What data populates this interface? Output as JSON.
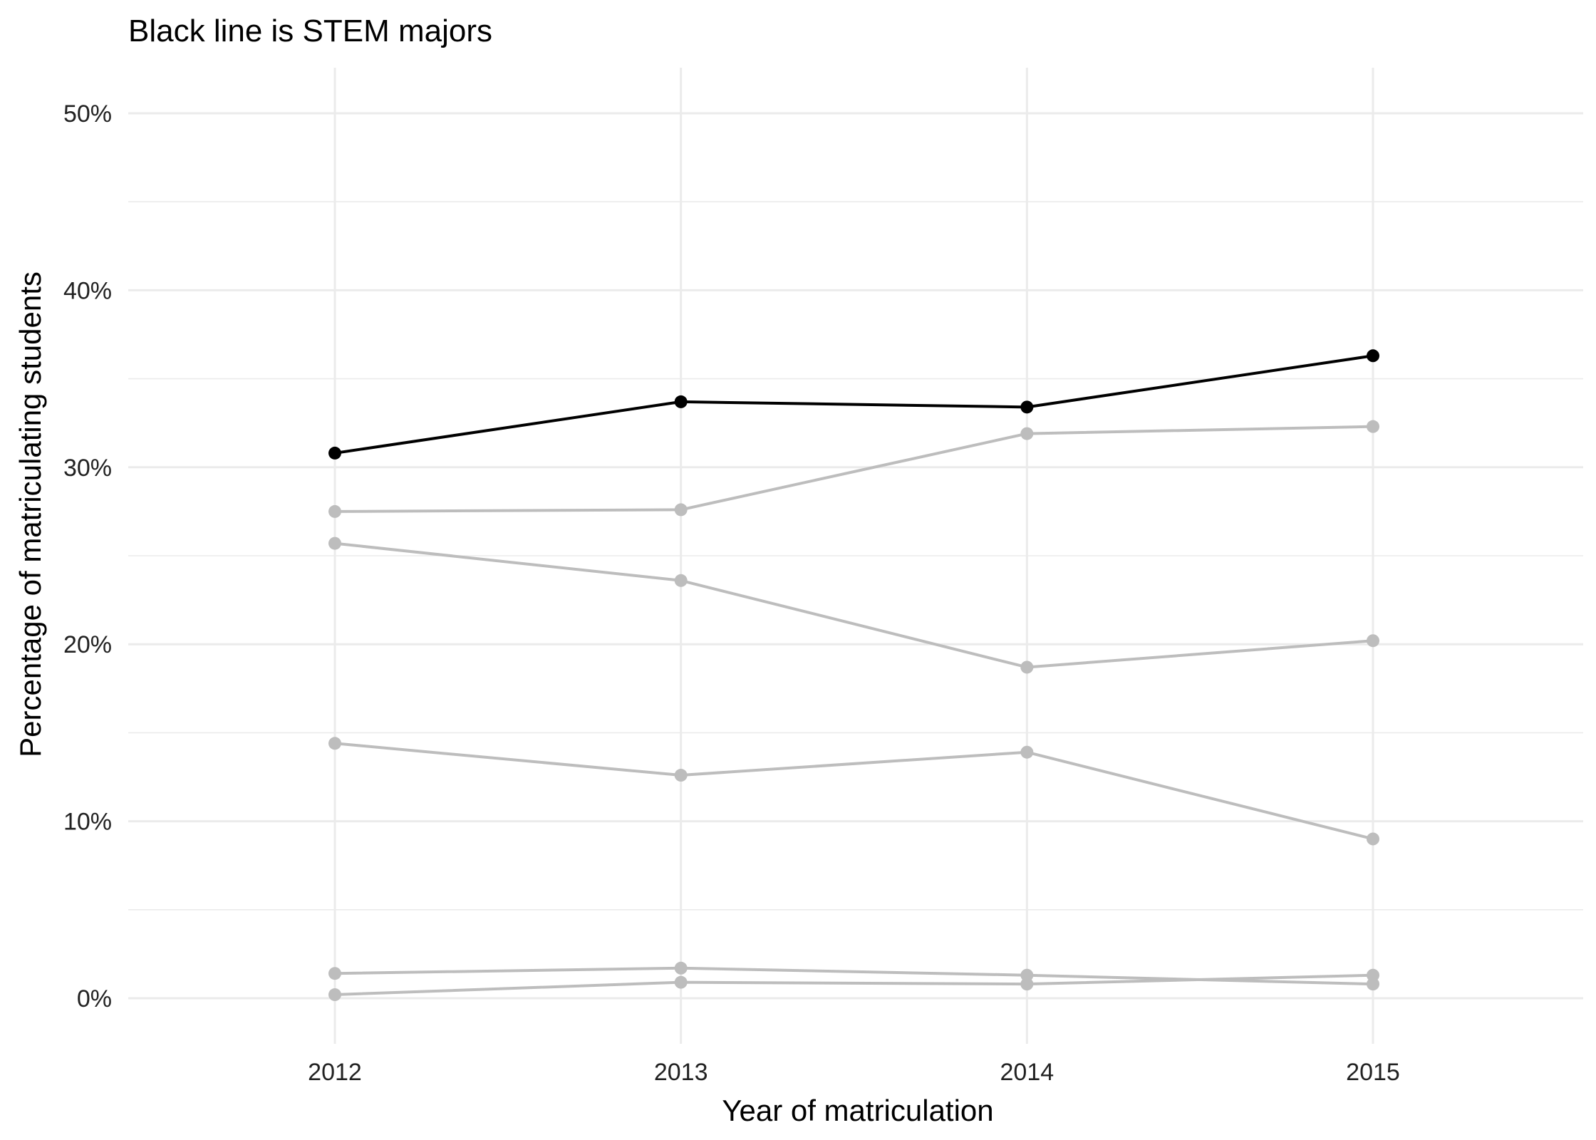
{
  "chart_data": {
    "type": "line",
    "title": "Black line is STEM majors",
    "xlabel": "Year of matriculation",
    "ylabel": "Percentage of matriculating students",
    "x": [
      2012,
      2013,
      2014,
      2015
    ],
    "x_tick_labels": [
      "2012",
      "2013",
      "2014",
      "2015"
    ],
    "ylim": [
      -2,
      52
    ],
    "y_ticks": [
      0,
      10,
      20,
      30,
      40,
      50
    ],
    "y_tick_labels": [
      "0%",
      "10%",
      "20%",
      "30%",
      "40%",
      "50%"
    ],
    "grid": true,
    "legend": "none",
    "colors": {
      "highlight": "#000000",
      "other": "#bdbdbd",
      "grid": "#ebebeb"
    },
    "series": [
      {
        "highlight": false,
        "values": [
          27.5,
          27.6,
          31.9,
          32.3
        ]
      },
      {
        "highlight": false,
        "values": [
          25.7,
          23.6,
          18.7,
          20.2
        ]
      },
      {
        "highlight": false,
        "values": [
          14.4,
          12.6,
          13.9,
          9.0
        ]
      },
      {
        "highlight": false,
        "values": [
          1.4,
          1.7,
          1.3,
          0.8
        ]
      },
      {
        "highlight": false,
        "values": [
          0.2,
          0.9,
          0.8,
          1.3
        ]
      },
      {
        "highlight": true,
        "values": [
          30.8,
          33.7,
          33.4,
          36.3
        ]
      }
    ]
  }
}
